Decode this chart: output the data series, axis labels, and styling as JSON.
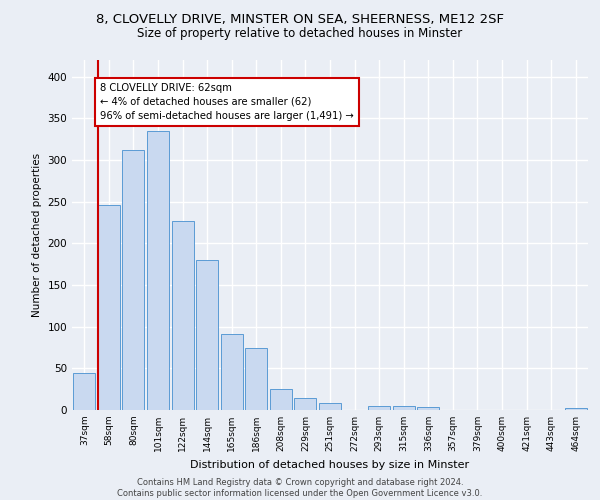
{
  "title_line1": "8, CLOVELLY DRIVE, MINSTER ON SEA, SHEERNESS, ME12 2SF",
  "title_line2": "Size of property relative to detached houses in Minster",
  "xlabel": "Distribution of detached houses by size in Minster",
  "ylabel": "Number of detached properties",
  "footer_line1": "Contains HM Land Registry data © Crown copyright and database right 2024.",
  "footer_line2": "Contains public sector information licensed under the Open Government Licence v3.0.",
  "categories": [
    "37sqm",
    "58sqm",
    "80sqm",
    "101sqm",
    "122sqm",
    "144sqm",
    "165sqm",
    "186sqm",
    "208sqm",
    "229sqm",
    "251sqm",
    "272sqm",
    "293sqm",
    "315sqm",
    "336sqm",
    "357sqm",
    "379sqm",
    "400sqm",
    "421sqm",
    "443sqm",
    "464sqm"
  ],
  "values": [
    44,
    246,
    312,
    335,
    227,
    180,
    91,
    74,
    25,
    15,
    9,
    0,
    5,
    5,
    4,
    0,
    0,
    0,
    0,
    0,
    3
  ],
  "bar_color": "#c9d9f0",
  "bar_edge_color": "#5b9bd5",
  "marker_line_color": "#cc0000",
  "annotation_text": "8 CLOVELLY DRIVE: 62sqm\n← 4% of detached houses are smaller (62)\n96% of semi-detached houses are larger (1,491) →",
  "annotation_box_color": "white",
  "annotation_box_edge_color": "#cc0000",
  "ylim": [
    0,
    420
  ],
  "yticks": [
    0,
    50,
    100,
    150,
    200,
    250,
    300,
    350,
    400
  ],
  "bg_color": "#eaeef5",
  "grid_color": "white",
  "title_fontsize": 9.5,
  "subtitle_fontsize": 8.5
}
